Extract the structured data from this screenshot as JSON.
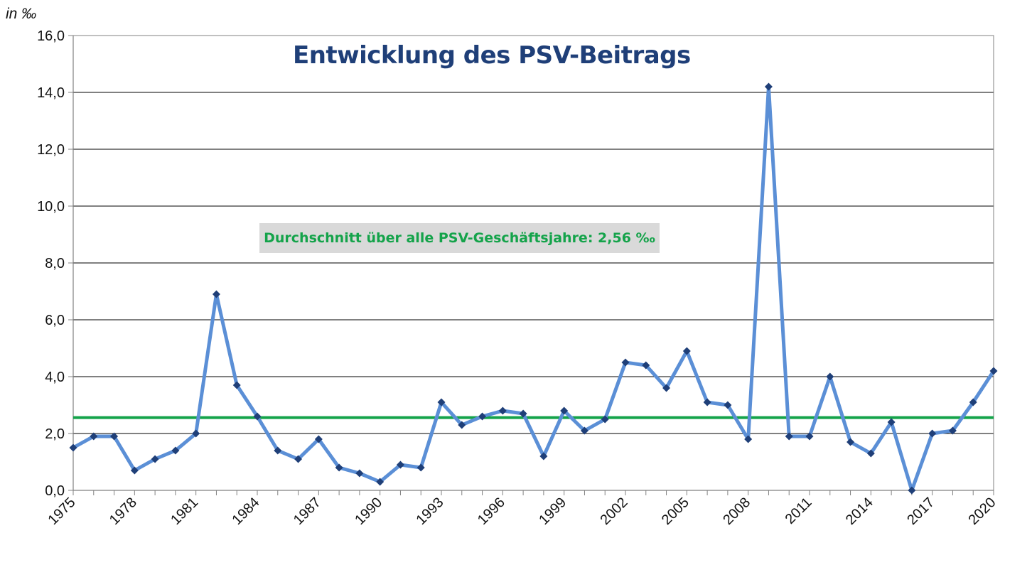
{
  "chart_data": {
    "type": "line",
    "title": "Entwicklung des PSV-Beitrags",
    "ylabel": "in ‰",
    "xlabel": "",
    "ylim": [
      0,
      16
    ],
    "yticks": [
      "0,0",
      "2,0",
      "4,0",
      "6,0",
      "8,0",
      "10,0",
      "12,0",
      "14,0",
      "16,0"
    ],
    "ytick_values": [
      0,
      2,
      4,
      6,
      8,
      10,
      12,
      14,
      16
    ],
    "xlim": [
      1975,
      2020
    ],
    "xticks": [
      "1975",
      "1978",
      "1981",
      "1984",
      "1987",
      "1990",
      "1993",
      "1996",
      "1999",
      "2002",
      "2005",
      "2008",
      "2011",
      "2014",
      "2017",
      "2020"
    ],
    "xtick_values": [
      1975,
      1978,
      1981,
      1984,
      1987,
      1990,
      1993,
      1996,
      1999,
      2002,
      2005,
      2008,
      2011,
      2014,
      2017,
      2020
    ],
    "grid": true,
    "series": [
      {
        "name": "",
        "color": "#5b8fd6",
        "marker_color": "#1f3f78",
        "x": [
          1975,
          1976,
          1977,
          1978,
          1979,
          1980,
          1981,
          1982,
          1983,
          1984,
          1985,
          1986,
          1987,
          1988,
          1989,
          1990,
          1991,
          1992,
          1993,
          1994,
          1995,
          1996,
          1997,
          1998,
          1999,
          2000,
          2001,
          2002,
          2003,
          2004,
          2005,
          2006,
          2007,
          2008,
          2009,
          2010,
          2011,
          2012,
          2013,
          2014,
          2015,
          2016,
          2017,
          2018,
          2019,
          2020
        ],
        "values": [
          1.5,
          1.9,
          1.9,
          0.7,
          1.1,
          1.4,
          2.0,
          6.9,
          3.7,
          2.6,
          1.4,
          1.1,
          1.8,
          0.8,
          0.6,
          0.3,
          0.9,
          0.8,
          3.1,
          2.3,
          2.6,
          2.8,
          2.7,
          1.2,
          2.8,
          2.1,
          2.5,
          4.5,
          4.4,
          3.6,
          4.9,
          3.1,
          3.0,
          1.8,
          14.2,
          1.9,
          1.9,
          4.0,
          1.7,
          1.3,
          2.4,
          0.0,
          2.0,
          2.1,
          3.1,
          4.2
        ]
      }
    ],
    "average_line": {
      "value": 2.56,
      "color": "#14a34a"
    },
    "annotation": "Durchschnitt über alle PSV-Geschäftsjahre: 2,56 ‰"
  }
}
